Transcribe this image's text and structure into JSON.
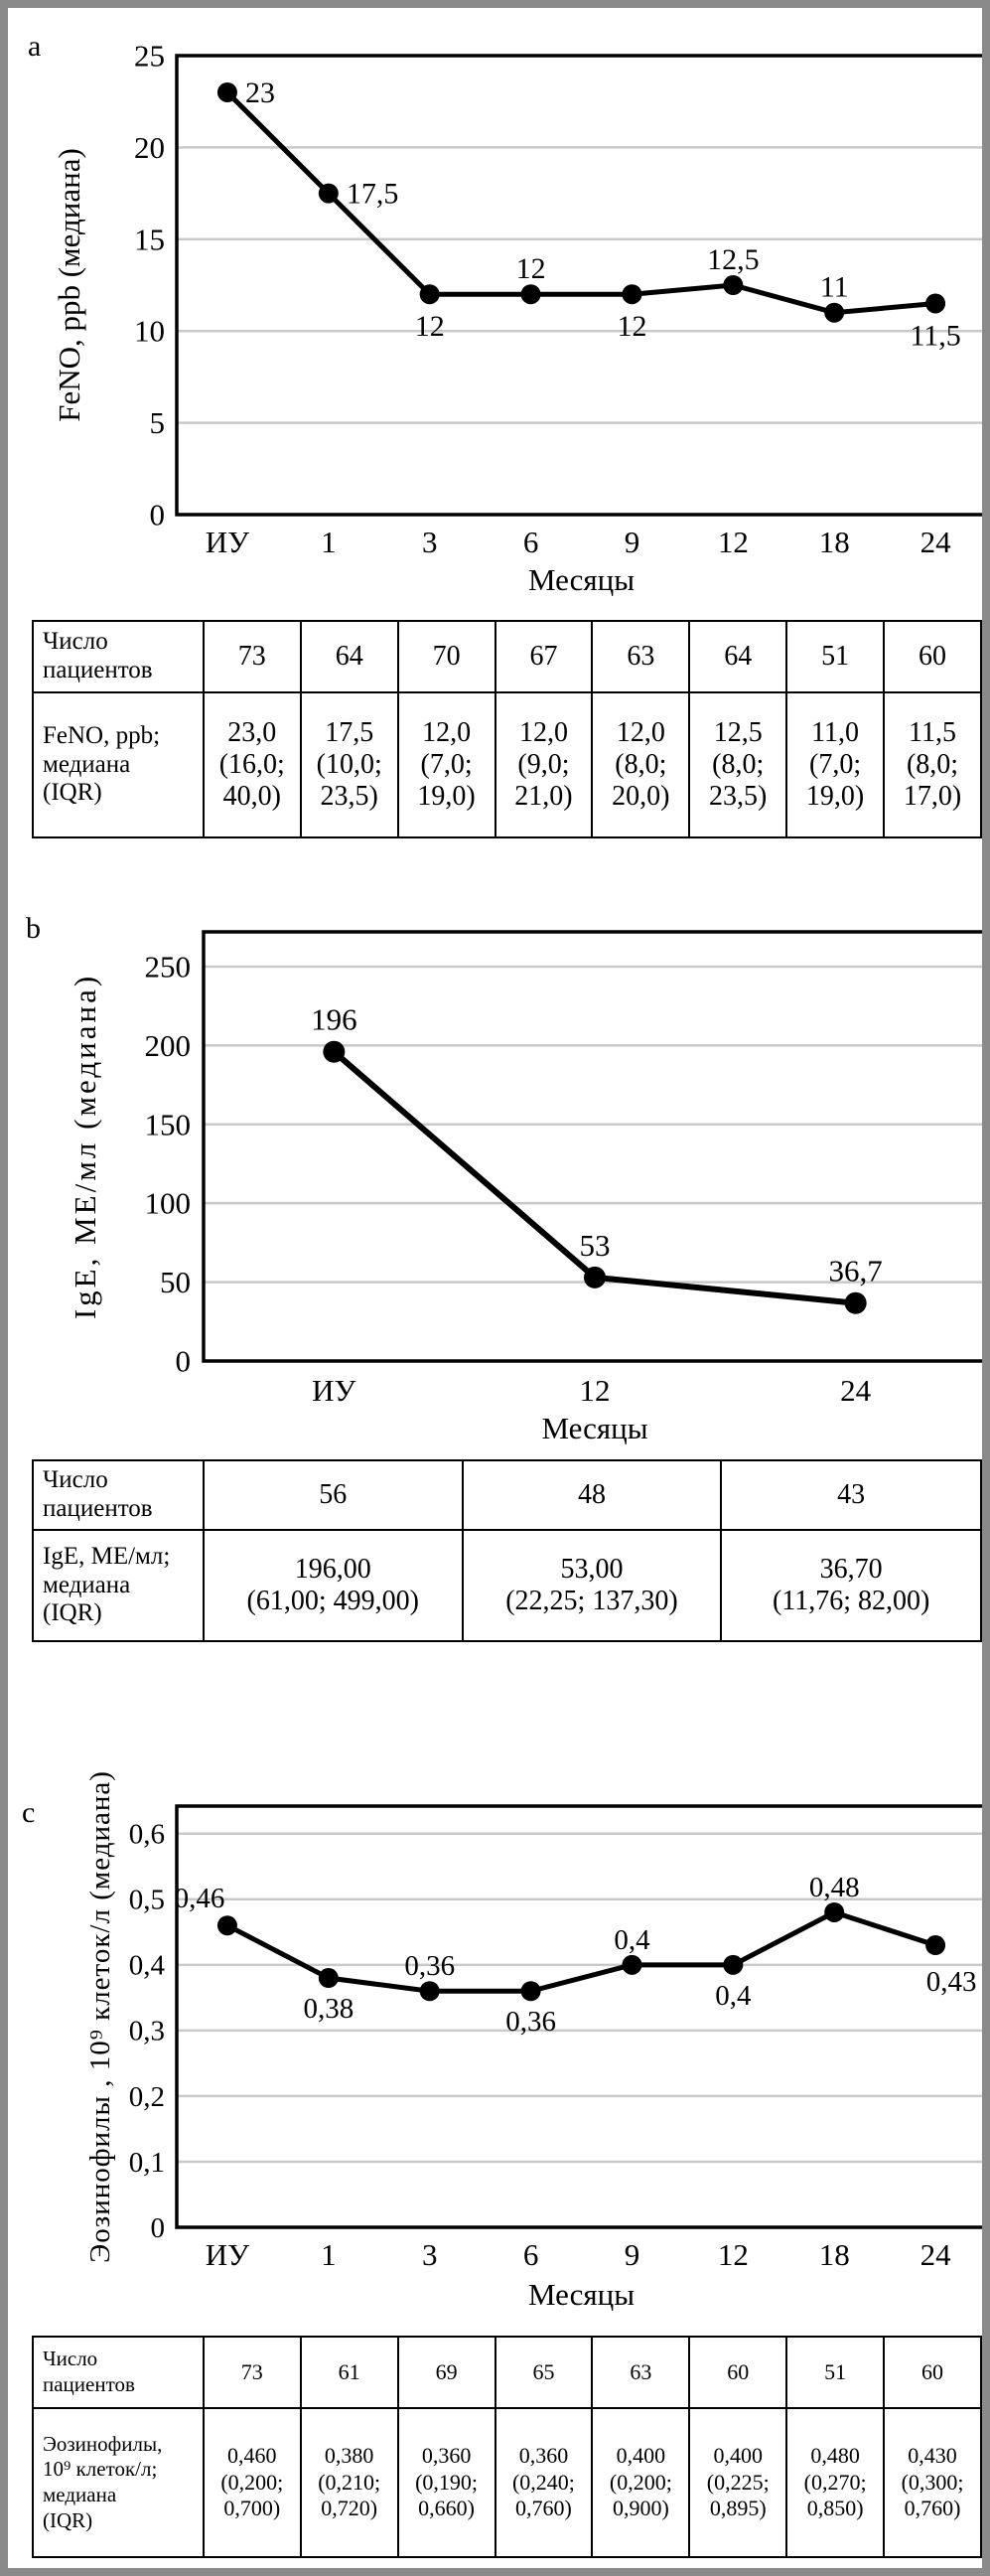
{
  "figure": {
    "frame_color": "#8a8a8a",
    "line_color": "#000000",
    "grid_color": "#c9c9c9",
    "panels": [
      {
        "label": "a"
      },
      {
        "label": "b"
      },
      {
        "label": "c"
      }
    ]
  },
  "chart_data": [
    {
      "type": "line",
      "panel": "a",
      "ylabel": "FeNO, ppb (медиана)",
      "xlabel": "Месяцы",
      "categories": [
        "ИУ",
        "1",
        "3",
        "6",
        "9",
        "12",
        "18",
        "24"
      ],
      "values": [
        23,
        17.5,
        12,
        12,
        12,
        12.5,
        11,
        11.5
      ],
      "point_labels": [
        "23",
        "17,5",
        "12",
        "12",
        "12",
        "12,5",
        "11",
        "11,5"
      ],
      "label_positions": [
        "right",
        "right",
        "below",
        "above",
        "below",
        "above",
        "above",
        "below"
      ],
      "ylim": [
        0,
        25
      ],
      "ytick_step": 5,
      "yticks": [
        "0",
        "5",
        "10",
        "15",
        "20",
        "25"
      ],
      "grid": true,
      "legend": "none",
      "line_color": "#000000"
    },
    {
      "type": "line",
      "panel": "b",
      "ylabel": "IgE, МЕ/мл (медиана)",
      "xlabel": "Месяцы",
      "categories": [
        "ИУ",
        "12",
        "24"
      ],
      "values": [
        196,
        53,
        36.7
      ],
      "point_labels": [
        "196",
        "53",
        "36,7"
      ],
      "label_positions": [
        "above",
        "above",
        "above"
      ],
      "ylim": [
        0,
        250
      ],
      "ytick_step": 50,
      "yticks": [
        "0",
        "50",
        "100",
        "150",
        "200",
        "250"
      ],
      "grid": true,
      "legend": "none",
      "line_color": "#000000"
    },
    {
      "type": "line",
      "panel": "c",
      "ylabel": "Эозинофилы , 10⁹ клеток/л (медиана)",
      "xlabel": "Месяцы",
      "categories": [
        "ИУ",
        "1",
        "3",
        "6",
        "9",
        "12",
        "18",
        "24"
      ],
      "values": [
        0.46,
        0.38,
        0.36,
        0.36,
        0.4,
        0.4,
        0.48,
        0.43
      ],
      "point_labels": [
        "0,46",
        "0,38",
        "0,36",
        "0,36",
        "0,4",
        "0,4",
        "0,48",
        "0,43"
      ],
      "label_positions": [
        "above-left",
        "below",
        "above",
        "below",
        "above",
        "below",
        "above",
        "below-right"
      ],
      "ylim": [
        0,
        0.6
      ],
      "ytick_step": 0.1,
      "yticks": [
        "0",
        "0,1",
        "0,2",
        "0,3",
        "0,4",
        "0,5",
        "0,6"
      ],
      "grid": true,
      "legend": "none",
      "line_color": "#000000"
    }
  ],
  "tables": [
    {
      "panel": "a",
      "rows": [
        {
          "label": "Число\nпациентов",
          "cells": [
            "73",
            "64",
            "70",
            "67",
            "63",
            "64",
            "51",
            "60"
          ]
        },
        {
          "label": "FeNO, ppb;\nмедиана\n(IQR)",
          "cells": [
            "23,0\n(16,0;\n40,0)",
            "17,5\n(10,0;\n23,5)",
            "12,0\n(7,0;\n19,0)",
            "12,0\n(9,0;\n21,0)",
            "12,0\n(8,0;\n20,0)",
            "12,5\n(8,0;\n23,5)",
            "11,0\n(7,0;\n19,0)",
            "11,5\n(8,0;\n17,0)"
          ]
        }
      ]
    },
    {
      "panel": "b",
      "rows": [
        {
          "label": "Число\nпациентов",
          "cells": [
            "56",
            "48",
            "43"
          ]
        },
        {
          "label": "IgE, МЕ/мл;\nмедиана\n(IQR)",
          "cells": [
            "196,00\n(61,00; 499,00)",
            "53,00\n(22,25; 137,30)",
            "36,70\n(11,76; 82,00)"
          ]
        }
      ]
    },
    {
      "panel": "c",
      "rows": [
        {
          "label": "Число\nпациентов",
          "cells": [
            "73",
            "61",
            "69",
            "65",
            "63",
            "60",
            "51",
            "60"
          ]
        },
        {
          "label": "Эозинофилы,\n10⁹ клеток/л;\nмедиана\n(IQR)",
          "cells": [
            "0,460\n(0,200;\n0,700)",
            "0,380\n(0,210;\n0,720)",
            "0,360\n(0,190;\n0,660)",
            "0,360\n(0,240;\n0,760)",
            "0,400\n(0,200;\n0,900)",
            "0,400\n(0,225;\n0,895)",
            "0,480\n(0,270;\n0,850)",
            "0,430\n(0,300;\n0,760)"
          ]
        }
      ]
    }
  ]
}
